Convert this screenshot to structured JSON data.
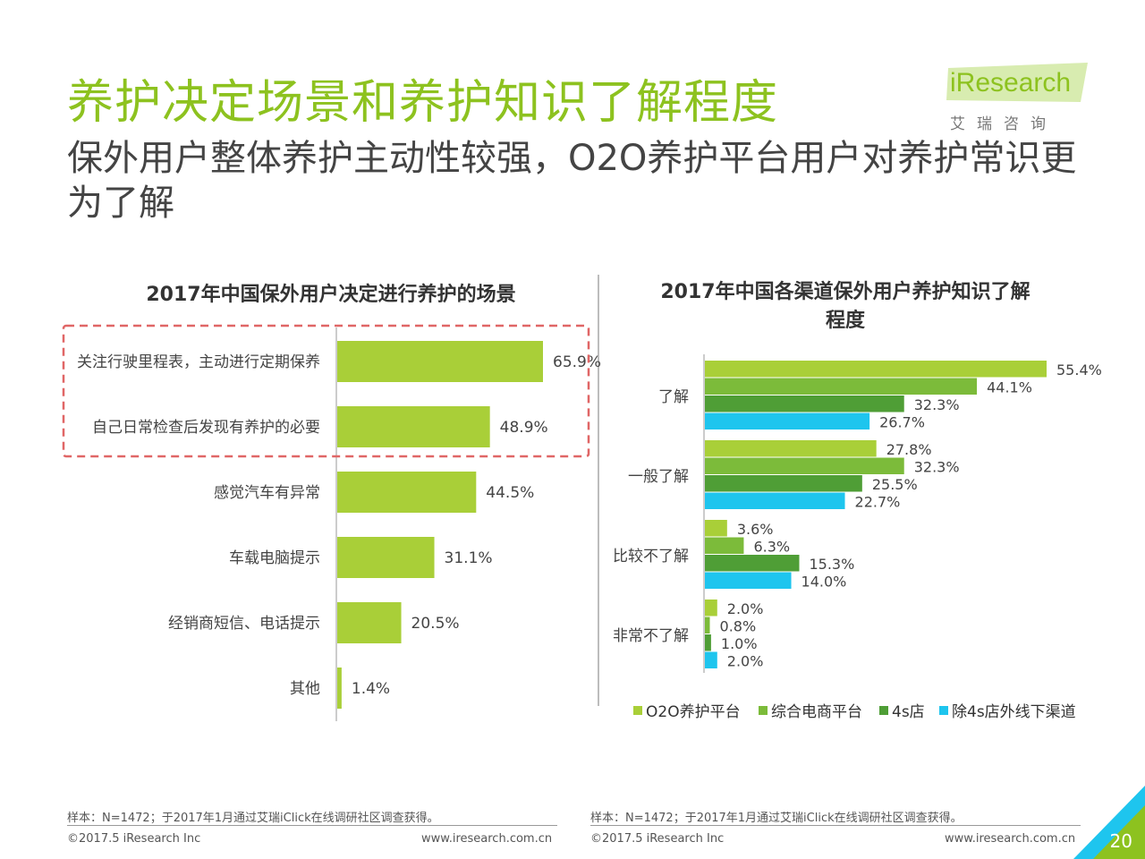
{
  "header": {
    "title": "养护决定场景和养护知识了解程度",
    "subtitle": "保外用户整体养护主动性较强，O2O养护平台用户对养护常识更为了解"
  },
  "logo": {
    "brand": "iResearch",
    "chinese": "艾瑞咨询"
  },
  "colors": {
    "accent": "#8dc21f",
    "bar_green": "#a9cf38",
    "mid_green": "#6db33f",
    "dark_green": "#4a9b3a",
    "cyan": "#1ec5ee",
    "highlight_box": "#e06666"
  },
  "chart_data": [
    {
      "type": "bar",
      "orientation": "horizontal",
      "title": "2017年中国保外用户决定进行养护的场景",
      "categories": [
        "关注行驶里程表，主动进行定期保养",
        "自己日常检查后发现有养护的必要",
        "感觉汽车有异常",
        "车载电脑提示",
        "经销商短信、电话提示",
        "其他"
      ],
      "values": [
        65.9,
        48.9,
        44.5,
        31.1,
        20.5,
        1.4
      ],
      "value_labels": [
        "65.9%",
        "48.9%",
        "44.5%",
        "31.1%",
        "20.5%",
        "1.4%"
      ],
      "highlighted": [
        0,
        1
      ]
    },
    {
      "type": "bar",
      "orientation": "horizontal",
      "title": "2017年中国各渠道保外用户养护知识了解程度",
      "categories": [
        "了解",
        "一般了解",
        "比较不了解",
        "非常不了解"
      ],
      "series": [
        {
          "name": "O2O养护平台",
          "values": [
            55.4,
            27.8,
            3.6,
            2.0
          ],
          "labels": [
            "55.4%",
            "27.8%",
            "3.6%",
            "2.0%"
          ],
          "color": "#a9cf38"
        },
        {
          "name": "综合电商平台",
          "values": [
            44.1,
            32.3,
            6.3,
            0.8
          ],
          "labels": [
            "44.1%",
            "32.3%",
            "6.3%",
            "0.8%"
          ],
          "color": "#7cbb3a"
        },
        {
          "name": "4s店",
          "values": [
            32.3,
            25.5,
            15.3,
            1.0
          ],
          "labels": [
            "32.3%",
            "25.5%",
            "15.3%",
            "1.0%"
          ],
          "color": "#4f9e36"
        },
        {
          "name": "除4s店外线下渠道",
          "values": [
            26.7,
            22.7,
            14.0,
            2.0
          ],
          "labels": [
            "26.7%",
            "22.7%",
            "14.0%",
            "2.0%"
          ],
          "color": "#1ec5ee"
        }
      ],
      "legend_position": "bottom"
    }
  ],
  "footer": {
    "note_left": "样本：N=1472；于2017年1月通过艾瑞iClick在线调研社区调查获得。",
    "note_right": "样本：N=1472；于2017年1月通过艾瑞iClick在线调研社区调查获得。",
    "copyright_left": "©2017.5 iResearch Inc",
    "url_left": "www.iresearch.com.cn",
    "copyright_right": "©2017.5 iResearch Inc",
    "url_right": "www.iresearch.com.cn",
    "page_number": "20"
  }
}
